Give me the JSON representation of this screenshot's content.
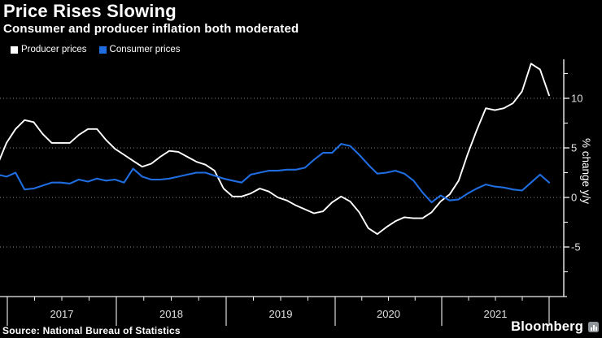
{
  "header": {
    "title": "Price Rises Slowing",
    "subtitle": "Consumer and producer inflation both moderated"
  },
  "legend": {
    "items": [
      {
        "label": "Producer prices",
        "color": "#ffffff"
      },
      {
        "label": "Consumer prices",
        "color": "#1f6de0"
      }
    ]
  },
  "axes": {
    "y_label": "% change y/y",
    "y_tick_labels": [
      "10",
      "5",
      "0",
      "-5"
    ],
    "x_tick_labels": [
      "2017",
      "2018",
      "2019",
      "2020",
      "2021"
    ]
  },
  "footer": {
    "source": "Source: National Bureau of Statistics",
    "brand": "Bloomberg",
    "brand_icon": "bar-chart-icon"
  },
  "colors": {
    "background": "#000000",
    "producer_line": "#ffffff",
    "consumer_line": "#1f6de0",
    "axis": "#f0f0f0",
    "grid": "#8a8a8a",
    "tick_label": "#e0e0e0"
  },
  "chart_data": {
    "type": "line",
    "title": "Price Rises Slowing",
    "subtitle": "Consumer and producer inflation both moderated",
    "ylabel": "% change y/y",
    "x_frequency": "monthly",
    "x_start": "Nov 2016",
    "x_end": "Dec 2021",
    "x_year_ticks": [
      "2017",
      "2018",
      "2019",
      "2020",
      "2021"
    ],
    "y_ticks": [
      10,
      5,
      0,
      -5
    ],
    "y_minor_ticks": [
      12.5,
      7.5,
      2.5,
      -2.5,
      -7.5
    ],
    "ylim": [
      -10,
      13.9
    ],
    "grid": "horizontal dotted lines at major y ticks",
    "legend_position": "top-left",
    "series": [
      {
        "name": "Producer prices",
        "color": "#ffffff",
        "values": [
          3.3,
          5.5,
          6.9,
          7.8,
          7.6,
          6.4,
          5.5,
          5.5,
          5.5,
          6.3,
          6.9,
          6.9,
          5.8,
          4.9,
          4.3,
          3.7,
          3.1,
          3.4,
          4.1,
          4.7,
          4.6,
          4.1,
          3.6,
          3.3,
          2.7,
          0.9,
          0.1,
          0.1,
          0.4,
          0.9,
          0.6,
          0.0,
          -0.3,
          -0.8,
          -1.2,
          -1.6,
          -1.4,
          -0.5,
          0.1,
          -0.4,
          -1.5,
          -3.1,
          -3.7,
          -3.0,
          -2.4,
          -2.0,
          -2.1,
          -2.1,
          -1.5,
          -0.4,
          0.3,
          1.7,
          4.4,
          6.8,
          9.0,
          8.8,
          9.0,
          9.5,
          10.7,
          13.5,
          12.9,
          10.3
        ]
      },
      {
        "name": "Consumer prices",
        "color": "#1f6de0",
        "values": [
          2.3,
          2.1,
          2.5,
          0.8,
          0.9,
          1.2,
          1.5,
          1.5,
          1.4,
          1.8,
          1.6,
          1.9,
          1.7,
          1.8,
          1.5,
          2.9,
          2.1,
          1.8,
          1.8,
          1.9,
          2.1,
          2.3,
          2.5,
          2.5,
          2.2,
          1.9,
          1.7,
          1.5,
          2.3,
          2.5,
          2.7,
          2.7,
          2.8,
          2.8,
          3.0,
          3.8,
          4.5,
          4.5,
          5.4,
          5.2,
          4.3,
          3.3,
          2.4,
          2.5,
          2.7,
          2.4,
          1.7,
          0.5,
          -0.5,
          0.2,
          -0.3,
          -0.2,
          0.4,
          0.9,
          1.3,
          1.1,
          1.0,
          0.8,
          0.7,
          1.5,
          2.3,
          1.5
        ]
      }
    ]
  }
}
